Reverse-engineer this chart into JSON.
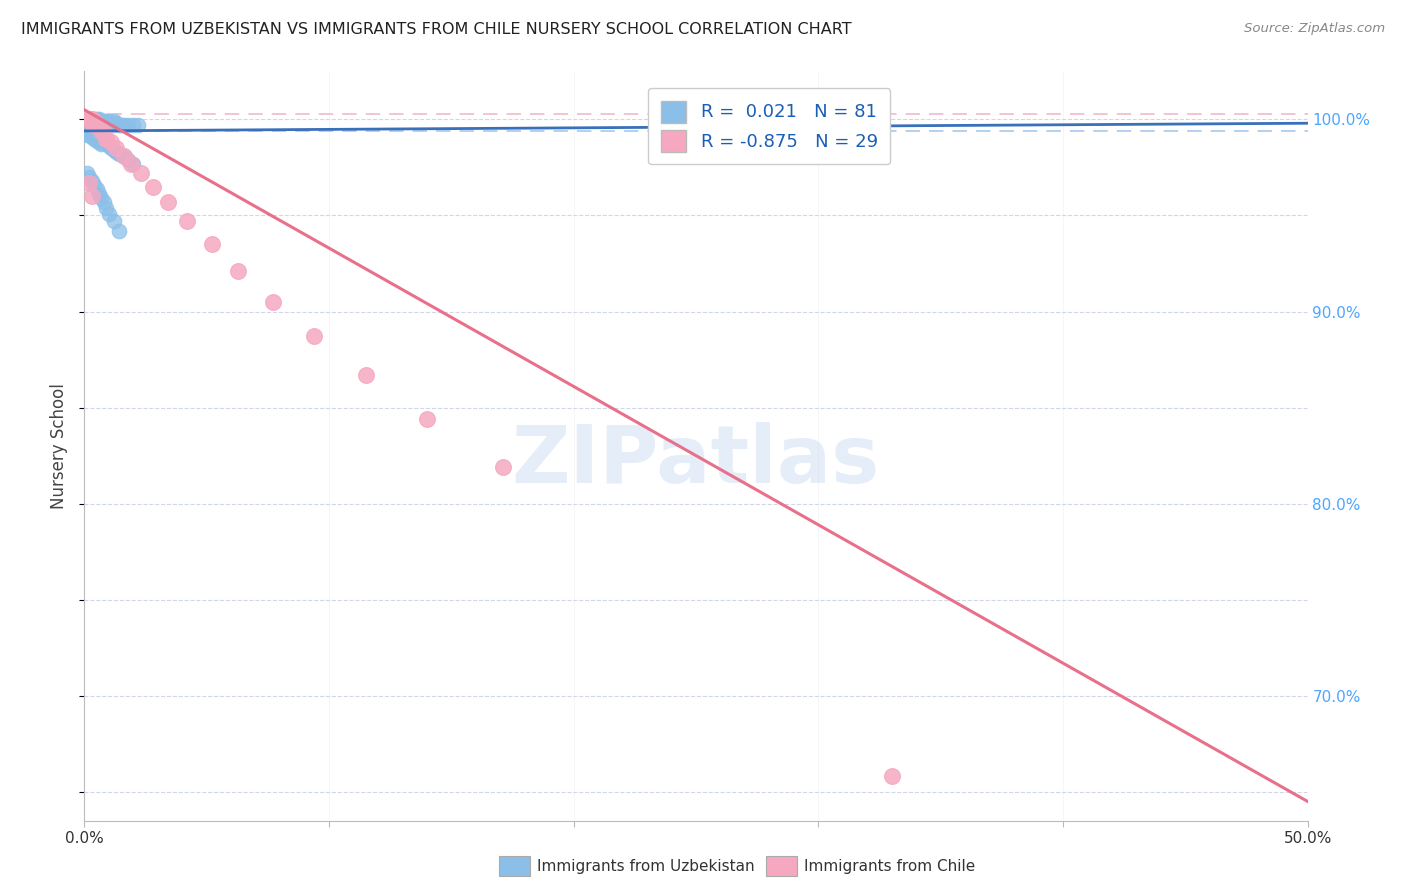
{
  "title": "IMMIGRANTS FROM UZBEKISTAN VS IMMIGRANTS FROM CHILE NURSERY SCHOOL CORRELATION CHART",
  "source": "Source: ZipAtlas.com",
  "ylabel": "Nursery School",
  "watermark": "ZIPatlas",
  "legend_R_uzbekistan": "R =  0.021",
  "legend_N_uzbekistan": "N = 81",
  "legend_R_chile": "R = -0.875",
  "legend_N_chile": "N = 29",
  "color_uzbekistan": "#8bbfe8",
  "color_chile": "#f5a8c0",
  "trendline_uzbekistan_color": "#3a6fba",
  "trendline_chile_color": "#e8708a",
  "dashed_uzbekistan_color": "#a0c8f0",
  "dashed_chile_color": "#f0b8cc",
  "grid_color": "#d0d8e8",
  "background_color": "#ffffff",
  "title_color": "#222222",
  "axis_label_color": "#444444",
  "ytick_color": "#4da6ff",
  "xtick_color": "#333333",
  "xlim": [
    0.0,
    0.5
  ],
  "ylim": [
    0.635,
    1.025
  ],
  "ytick_positions": [
    1.0,
    0.9,
    0.8,
    0.7
  ],
  "ytick_labels": [
    "100.0%",
    "90.0%",
    "80.0%",
    "70.0%"
  ],
  "xtick_positions": [
    0.0,
    0.1,
    0.2,
    0.3,
    0.4,
    0.5
  ],
  "xtick_labels": [
    "0.0%",
    "",
    "",
    "",
    "",
    "50.0%"
  ],
  "uzbekistan_x": [
    0.001,
    0.001,
    0.001,
    0.002,
    0.002,
    0.002,
    0.002,
    0.002,
    0.002,
    0.003,
    0.003,
    0.003,
    0.003,
    0.003,
    0.003,
    0.004,
    0.004,
    0.004,
    0.004,
    0.004,
    0.005,
    0.005,
    0.005,
    0.005,
    0.006,
    0.006,
    0.006,
    0.007,
    0.007,
    0.008,
    0.008,
    0.009,
    0.009,
    0.01,
    0.01,
    0.011,
    0.012,
    0.012,
    0.013,
    0.014,
    0.015,
    0.016,
    0.018,
    0.02,
    0.022,
    0.001,
    0.001,
    0.002,
    0.002,
    0.003,
    0.003,
    0.004,
    0.004,
    0.005,
    0.005,
    0.006,
    0.006,
    0.007,
    0.007,
    0.008,
    0.009,
    0.01,
    0.011,
    0.012,
    0.013,
    0.014,
    0.016,
    0.018,
    0.02,
    0.001,
    0.002,
    0.003,
    0.004,
    0.005,
    0.006,
    0.007,
    0.008,
    0.009,
    0.01,
    0.012,
    0.014
  ],
  "uzbekistan_y": [
    1.0,
    1.0,
    0.998,
    1.0,
    1.0,
    0.999,
    0.998,
    0.997,
    0.996,
    1.0,
    1.0,
    0.999,
    0.998,
    0.997,
    0.996,
    1.0,
    0.999,
    0.998,
    0.997,
    0.996,
    1.0,
    0.999,
    0.997,
    0.996,
    1.0,
    0.999,
    0.997,
    0.999,
    0.997,
    0.999,
    0.997,
    0.999,
    0.997,
    0.999,
    0.997,
    0.998,
    0.999,
    0.997,
    0.998,
    0.997,
    0.997,
    0.997,
    0.997,
    0.997,
    0.997,
    0.994,
    0.992,
    0.994,
    0.992,
    0.993,
    0.991,
    0.993,
    0.99,
    0.992,
    0.989,
    0.991,
    0.988,
    0.99,
    0.987,
    0.989,
    0.987,
    0.986,
    0.985,
    0.984,
    0.983,
    0.982,
    0.981,
    0.979,
    0.977,
    0.972,
    0.97,
    0.968,
    0.966,
    0.964,
    0.961,
    0.959,
    0.957,
    0.954,
    0.951,
    0.947,
    0.942
  ],
  "chile_x": [
    0.001,
    0.002,
    0.003,
    0.003,
    0.004,
    0.004,
    0.005,
    0.006,
    0.007,
    0.008,
    0.009,
    0.011,
    0.013,
    0.016,
    0.019,
    0.023,
    0.028,
    0.034,
    0.042,
    0.052,
    0.063,
    0.077,
    0.094,
    0.115,
    0.14,
    0.171,
    0.002,
    0.003,
    0.33
  ],
  "chile_y": [
    1.0,
    1.0,
    1.0,
    0.998,
    0.999,
    0.997,
    0.997,
    0.996,
    0.994,
    0.993,
    0.99,
    0.988,
    0.985,
    0.981,
    0.977,
    0.972,
    0.965,
    0.957,
    0.947,
    0.935,
    0.921,
    0.905,
    0.887,
    0.867,
    0.844,
    0.819,
    0.967,
    0.96,
    0.658
  ],
  "chile_trendline_x0": 0.0,
  "chile_trendline_y0": 1.005,
  "chile_trendline_x1": 0.5,
  "chile_trendline_y1": 0.645,
  "uzbekistan_trendline_x0": 0.0,
  "uzbekistan_trendline_y0": 0.994,
  "uzbekistan_trendline_x1": 0.5,
  "uzbekistan_trendline_y1": 0.998
}
